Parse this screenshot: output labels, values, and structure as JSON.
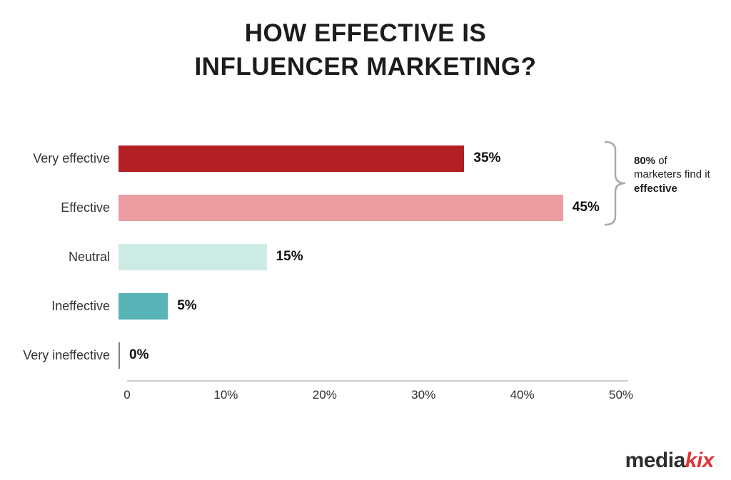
{
  "title": {
    "line1": "HOW EFFECTIVE IS",
    "line2": "INFLUENCER MARKETING?"
  },
  "chart_data": {
    "type": "bar",
    "orientation": "horizontal",
    "title": "HOW EFFECTIVE IS INFLUENCER MARKETING?",
    "xlabel": "",
    "ylabel": "",
    "categories": [
      "Very effective",
      "Effective",
      "Neutral",
      "Ineffective",
      "Very ineffective"
    ],
    "values": [
      35,
      45,
      15,
      5,
      0
    ],
    "value_labels": [
      "35%",
      "45%",
      "15%",
      "5%",
      "0%"
    ],
    "bar_colors": [
      "#b21f24",
      "#ec9da2",
      "#cdebe5",
      "#58b4b6",
      "#808080"
    ],
    "x_ticks": [
      "0",
      "10%",
      "20%",
      "30%",
      "40%",
      "50%"
    ],
    "xlim": [
      0,
      50
    ],
    "grid": false,
    "legend": false,
    "annotation_text": "80% of marketers find it effective"
  },
  "annotation": {
    "bold1": "80%",
    "middle": " of marketers find it ",
    "bold2": "effective"
  },
  "logo": {
    "part1": "media",
    "part2": "kix",
    "kix_color": "#e23237"
  }
}
